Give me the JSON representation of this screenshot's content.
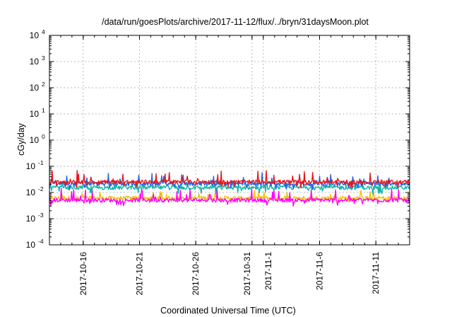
{
  "chart_data": {
    "type": "line",
    "title": "/data/run/goesPlots/archive/2017-11-12/flux/../bryn/31daysMoon.plot",
    "xlabel": "Coordinated Universal Time (UTC)",
    "ylabel": "cGy/day",
    "y_scale": "log",
    "ylim": [
      0.0001,
      10000
    ],
    "y_ticks": [
      {
        "base": "10",
        "exp": "-4",
        "value": 0.0001
      },
      {
        "base": "10",
        "exp": "-3",
        "value": 0.001
      },
      {
        "base": "10",
        "exp": "-2",
        "value": 0.01
      },
      {
        "base": "10",
        "exp": "-1",
        "value": 0.1
      },
      {
        "base": "10",
        "exp": "0",
        "value": 1
      },
      {
        "base": "10",
        "exp": "1",
        "value": 10
      },
      {
        "base": "10",
        "exp": "2",
        "value": 100
      },
      {
        "base": "10",
        "exp": "3",
        "value": 1000
      },
      {
        "base": "10",
        "exp": "4",
        "value": 10000
      }
    ],
    "xlim": [
      "2017-10-13",
      "2017-11-14"
    ],
    "x_ticks": [
      {
        "date": "2017-10-16",
        "label": "2017-10-16"
      },
      {
        "date": "2017-10-21",
        "label": "2017-10-21"
      },
      {
        "date": "2017-10-26",
        "label": "2017-10-26"
      },
      {
        "date": "2017-10-31",
        "label": "2017-10-31"
      },
      {
        "date": "2017-11-01",
        "label": "2017-11-1"
      },
      {
        "date": "2017-11-06",
        "label": "2017-11-6"
      },
      {
        "date": "2017-11-11",
        "label": "2017-11-11"
      }
    ],
    "grid": true,
    "series": [
      {
        "color": "#e8161b",
        "values_range": [
          0.015,
          0.07
        ],
        "typical": 0.025
      },
      {
        "color": "#1f66e5",
        "values_range": [
          0.012,
          0.06
        ],
        "typical": 0.021
      },
      {
        "color": "#12b3a6",
        "values_range": [
          0.008,
          0.025
        ],
        "typical": 0.015
      },
      {
        "color": "#f0c000",
        "values_range": [
          0.004,
          0.012
        ],
        "typical": 0.006
      },
      {
        "color": "#ff00ff",
        "values_range": [
          0.003,
          0.015
        ],
        "typical": 0.005
      }
    ]
  }
}
